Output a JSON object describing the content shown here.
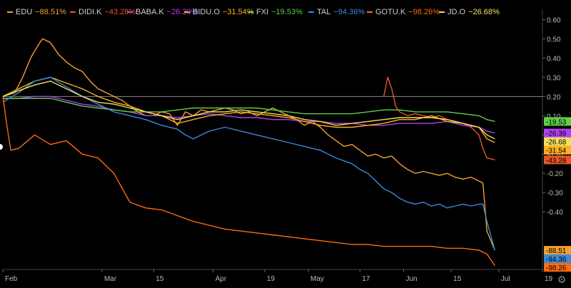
{
  "chart_data": {
    "type": "line",
    "title": "",
    "xlabel": "",
    "ylabel": "",
    "ylim": [
      -0.7,
      0.65
    ],
    "xlim": [
      0,
      124
    ],
    "x_ticks": [
      {
        "pos": 0,
        "label": "Feb"
      },
      {
        "pos": 25,
        "label": "Mar"
      },
      {
        "pos": 38,
        "label": "15"
      },
      {
        "pos": 53,
        "label": "Apr"
      },
      {
        "pos": 66,
        "label": "19"
      },
      {
        "pos": 77,
        "label": "May"
      },
      {
        "pos": 90,
        "label": "17"
      },
      {
        "pos": 101,
        "label": "Jun"
      },
      {
        "pos": 113,
        "label": "15"
      },
      {
        "pos": 125,
        "label": "Jul"
      },
      {
        "pos": 136,
        "label": "19"
      }
    ],
    "y_ticks": [
      0.6,
      0.5,
      0.4,
      0.3,
      0.2,
      0.1,
      0.0,
      -0.1,
      -0.2,
      -0.3,
      -0.4
    ],
    "y_tick_labels": [
      "0.60",
      "0.50",
      "0.40",
      "0.30",
      "0.20",
      "0.10",
      "0.00",
      "-0.10",
      "-0.20",
      "-0.30",
      "-0.40"
    ],
    "reference_line": 0.2,
    "series": [
      {
        "name": "EDU",
        "change": "−88.51%",
        "end_label": "-88.51",
        "color": "#f0a030",
        "points": [
          [
            0,
            0.2
          ],
          [
            3,
            0.22
          ],
          [
            5,
            0.3
          ],
          [
            7,
            0.4
          ],
          [
            9,
            0.47
          ],
          [
            10,
            0.5
          ],
          [
            12,
            0.48
          ],
          [
            14,
            0.42
          ],
          [
            16,
            0.38
          ],
          [
            18,
            0.35
          ],
          [
            20,
            0.33
          ],
          [
            22,
            0.28
          ],
          [
            24,
            0.24
          ],
          [
            26,
            0.22
          ],
          [
            28,
            0.2
          ],
          [
            30,
            0.18
          ],
          [
            32,
            0.15
          ],
          [
            34,
            0.12
          ],
          [
            36,
            0.1
          ],
          [
            38,
            0.1
          ],
          [
            40,
            0.12
          ],
          [
            42,
            0.11
          ],
          [
            44,
            0.05
          ],
          [
            46,
            0.12
          ],
          [
            48,
            0.1
          ],
          [
            50,
            0.13
          ],
          [
            52,
            0.12
          ],
          [
            54,
            0.13
          ],
          [
            56,
            0.14
          ],
          [
            58,
            0.13
          ],
          [
            60,
            0.11
          ],
          [
            62,
            0.12
          ],
          [
            64,
            0.1
          ],
          [
            66,
            0.12
          ],
          [
            68,
            0.14
          ],
          [
            70,
            0.12
          ],
          [
            72,
            0.1
          ],
          [
            74,
            0.08
          ],
          [
            76,
            0.05
          ],
          [
            78,
            0.07
          ],
          [
            80,
            0.04
          ],
          [
            82,
            0.0
          ],
          [
            84,
            -0.03
          ],
          [
            86,
            -0.06
          ],
          [
            88,
            -0.05
          ],
          [
            90,
            -0.08
          ],
          [
            92,
            -0.11
          ],
          [
            94,
            -0.1
          ],
          [
            96,
            -0.12
          ],
          [
            98,
            -0.11
          ],
          [
            100,
            -0.15
          ],
          [
            102,
            -0.18
          ],
          [
            104,
            -0.2
          ],
          [
            106,
            -0.19
          ],
          [
            108,
            -0.2
          ],
          [
            110,
            -0.21
          ],
          [
            112,
            -0.2
          ],
          [
            114,
            -0.22
          ],
          [
            116,
            -0.23
          ],
          [
            118,
            -0.22
          ],
          [
            120,
            -0.24
          ],
          [
            121,
            -0.25
          ],
          [
            122,
            -0.5
          ],
          [
            124,
            -0.6
          ]
        ]
      },
      {
        "name": "DIDI.K",
        "change": "−43.28%",
        "end_label": "-43.28",
        "color": "#e8542a",
        "points": [
          [
            96,
            0.2
          ],
          [
            97,
            0.3
          ],
          [
            98,
            0.24
          ],
          [
            99,
            0.15
          ],
          [
            100,
            0.12
          ],
          [
            102,
            0.1
          ],
          [
            104,
            0.11
          ],
          [
            106,
            0.1
          ],
          [
            108,
            0.09
          ],
          [
            110,
            0.1
          ],
          [
            112,
            0.08
          ],
          [
            114,
            0.07
          ],
          [
            116,
            0.06
          ],
          [
            118,
            0.04
          ],
          [
            120,
            0.0
          ],
          [
            121,
            -0.07
          ],
          [
            122,
            -0.12
          ],
          [
            124,
            -0.13
          ]
        ]
      },
      {
        "name": "BABA.K",
        "change": "−26.39%",
        "end_label": "-26.39",
        "color": "#b040f0",
        "points": [
          [
            0,
            0.19
          ],
          [
            4,
            0.19
          ],
          [
            8,
            0.2
          ],
          [
            12,
            0.2
          ],
          [
            16,
            0.18
          ],
          [
            20,
            0.16
          ],
          [
            24,
            0.15
          ],
          [
            28,
            0.13
          ],
          [
            32,
            0.12
          ],
          [
            36,
            0.1
          ],
          [
            40,
            0.1
          ],
          [
            44,
            0.09
          ],
          [
            48,
            0.1
          ],
          [
            52,
            0.11
          ],
          [
            56,
            0.1
          ],
          [
            60,
            0.09
          ],
          [
            64,
            0.09
          ],
          [
            68,
            0.08
          ],
          [
            72,
            0.08
          ],
          [
            76,
            0.07
          ],
          [
            80,
            0.07
          ],
          [
            84,
            0.06
          ],
          [
            88,
            0.06
          ],
          [
            92,
            0.05
          ],
          [
            96,
            0.05
          ],
          [
            100,
            0.06
          ],
          [
            104,
            0.06
          ],
          [
            108,
            0.06
          ],
          [
            112,
            0.07
          ],
          [
            116,
            0.05
          ],
          [
            120,
            0.04
          ],
          [
            122,
            0.02
          ],
          [
            124,
            0.01
          ]
        ]
      },
      {
        "name": "BIDU.O",
        "change": "−31.54%",
        "end_label": "-31.54",
        "color": "#ffb020",
        "points": [
          [
            0,
            0.2
          ],
          [
            4,
            0.24
          ],
          [
            8,
            0.28
          ],
          [
            12,
            0.3
          ],
          [
            16,
            0.27
          ],
          [
            20,
            0.24
          ],
          [
            24,
            0.2
          ],
          [
            28,
            0.17
          ],
          [
            32,
            0.15
          ],
          [
            36,
            0.12
          ],
          [
            40,
            0.1
          ],
          [
            44,
            0.06
          ],
          [
            48,
            0.08
          ],
          [
            52,
            0.1
          ],
          [
            56,
            0.11
          ],
          [
            60,
            0.12
          ],
          [
            64,
            0.11
          ],
          [
            68,
            0.1
          ],
          [
            72,
            0.09
          ],
          [
            76,
            0.07
          ],
          [
            80,
            0.05
          ],
          [
            84,
            0.04
          ],
          [
            88,
            0.04
          ],
          [
            92,
            0.05
          ],
          [
            96,
            0.06
          ],
          [
            100,
            0.08
          ],
          [
            104,
            0.08
          ],
          [
            108,
            0.1
          ],
          [
            112,
            0.07
          ],
          [
            116,
            0.06
          ],
          [
            120,
            0.04
          ],
          [
            122,
            -0.02
          ],
          [
            124,
            -0.04
          ]
        ]
      },
      {
        "name": "FXI",
        "change": "−19.53%",
        "end_label": "-19.53",
        "color": "#5fd047",
        "points": [
          [
            0,
            0.19
          ],
          [
            4,
            0.19
          ],
          [
            8,
            0.19
          ],
          [
            12,
            0.19
          ],
          [
            16,
            0.17
          ],
          [
            20,
            0.15
          ],
          [
            24,
            0.14
          ],
          [
            28,
            0.13
          ],
          [
            32,
            0.12
          ],
          [
            36,
            0.12
          ],
          [
            40,
            0.12
          ],
          [
            44,
            0.13
          ],
          [
            48,
            0.14
          ],
          [
            52,
            0.14
          ],
          [
            56,
            0.14
          ],
          [
            60,
            0.14
          ],
          [
            64,
            0.14
          ],
          [
            68,
            0.13
          ],
          [
            72,
            0.12
          ],
          [
            76,
            0.11
          ],
          [
            80,
            0.11
          ],
          [
            84,
            0.11
          ],
          [
            88,
            0.11
          ],
          [
            92,
            0.12
          ],
          [
            96,
            0.13
          ],
          [
            100,
            0.13
          ],
          [
            104,
            0.12
          ],
          [
            108,
            0.12
          ],
          [
            112,
            0.12
          ],
          [
            116,
            0.11
          ],
          [
            120,
            0.1
          ],
          [
            122,
            0.08
          ],
          [
            124,
            0.07
          ]
        ]
      },
      {
        "name": "TAL",
        "change": "−94.36%",
        "end_label": "-94.36",
        "color": "#3a8ad8",
        "points": [
          [
            0,
            0.17
          ],
          [
            4,
            0.22
          ],
          [
            8,
            0.28
          ],
          [
            12,
            0.3
          ],
          [
            16,
            0.25
          ],
          [
            20,
            0.2
          ],
          [
            24,
            0.16
          ],
          [
            28,
            0.12
          ],
          [
            32,
            0.1
          ],
          [
            36,
            0.08
          ],
          [
            40,
            0.05
          ],
          [
            44,
            0.03
          ],
          [
            46,
            0.0
          ],
          [
            48,
            -0.02
          ],
          [
            52,
            0.02
          ],
          [
            56,
            0.04
          ],
          [
            60,
            0.02
          ],
          [
            64,
            0.0
          ],
          [
            68,
            -0.02
          ],
          [
            72,
            -0.04
          ],
          [
            76,
            -0.06
          ],
          [
            80,
            -0.08
          ],
          [
            84,
            -0.12
          ],
          [
            88,
            -0.15
          ],
          [
            90,
            -0.18
          ],
          [
            92,
            -0.2
          ],
          [
            94,
            -0.24
          ],
          [
            96,
            -0.28
          ],
          [
            98,
            -0.3
          ],
          [
            100,
            -0.33
          ],
          [
            102,
            -0.35
          ],
          [
            104,
            -0.36
          ],
          [
            106,
            -0.35
          ],
          [
            108,
            -0.37
          ],
          [
            110,
            -0.36
          ],
          [
            112,
            -0.38
          ],
          [
            114,
            -0.37
          ],
          [
            116,
            -0.36
          ],
          [
            118,
            -0.37
          ],
          [
            120,
            -0.36
          ],
          [
            121,
            -0.36
          ],
          [
            122,
            -0.45
          ],
          [
            124,
            -0.6
          ]
        ]
      },
      {
        "name": "GOTU.K",
        "change": "−98.26%",
        "end_label": "-98.26",
        "color": "#ff6a10",
        "points": [
          [
            0,
            0.2
          ],
          [
            1,
            0.05
          ],
          [
            2,
            -0.08
          ],
          [
            4,
            -0.07
          ],
          [
            8,
            0.0
          ],
          [
            12,
            -0.05
          ],
          [
            16,
            -0.03
          ],
          [
            20,
            -0.1
          ],
          [
            24,
            -0.12
          ],
          [
            28,
            -0.2
          ],
          [
            32,
            -0.35
          ],
          [
            36,
            -0.38
          ],
          [
            40,
            -0.39
          ],
          [
            44,
            -0.42
          ],
          [
            48,
            -0.45
          ],
          [
            52,
            -0.47
          ],
          [
            56,
            -0.49
          ],
          [
            60,
            -0.5
          ],
          [
            64,
            -0.51
          ],
          [
            68,
            -0.52
          ],
          [
            72,
            -0.53
          ],
          [
            76,
            -0.54
          ],
          [
            80,
            -0.55
          ],
          [
            84,
            -0.56
          ],
          [
            88,
            -0.57
          ],
          [
            92,
            -0.57
          ],
          [
            96,
            -0.58
          ],
          [
            100,
            -0.58
          ],
          [
            104,
            -0.58
          ],
          [
            108,
            -0.58
          ],
          [
            112,
            -0.59
          ],
          [
            116,
            -0.59
          ],
          [
            120,
            -0.6
          ],
          [
            122,
            -0.62
          ],
          [
            124,
            -0.68
          ]
        ]
      },
      {
        "name": "JD.O",
        "change": "−26.68%",
        "end_label": "-26.68",
        "color": "#f2e060",
        "points": [
          [
            0,
            0.2
          ],
          [
            4,
            0.23
          ],
          [
            8,
            0.26
          ],
          [
            12,
            0.28
          ],
          [
            16,
            0.24
          ],
          [
            20,
            0.2
          ],
          [
            24,
            0.17
          ],
          [
            28,
            0.16
          ],
          [
            32,
            0.14
          ],
          [
            36,
            0.12
          ],
          [
            40,
            0.1
          ],
          [
            44,
            0.08
          ],
          [
            48,
            0.1
          ],
          [
            52,
            0.12
          ],
          [
            56,
            0.12
          ],
          [
            60,
            0.13
          ],
          [
            64,
            0.12
          ],
          [
            68,
            0.11
          ],
          [
            72,
            0.1
          ],
          [
            76,
            0.08
          ],
          [
            80,
            0.07
          ],
          [
            84,
            0.05
          ],
          [
            88,
            0.06
          ],
          [
            92,
            0.07
          ],
          [
            96,
            0.08
          ],
          [
            100,
            0.09
          ],
          [
            104,
            0.09
          ],
          [
            108,
            0.09
          ],
          [
            112,
            0.08
          ],
          [
            116,
            0.06
          ],
          [
            120,
            0.04
          ],
          [
            122,
            0.0
          ],
          [
            124,
            -0.02
          ]
        ]
      }
    ]
  },
  "ui": {
    "settings_icon": "gear-icon"
  }
}
